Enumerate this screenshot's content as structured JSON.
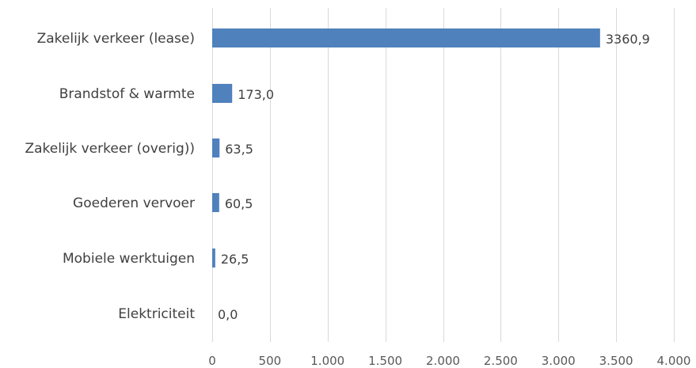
{
  "chart_data": {
    "type": "bar",
    "orientation": "horizontal",
    "categories": [
      "Zakelijk verkeer (lease)",
      "Brandstof & warmte",
      "Zakelijk verkeer (overig))",
      "Goederen vervoer",
      "Mobiele werktuigen",
      "Elektriciteit"
    ],
    "values": [
      3360.9,
      173.0,
      63.5,
      60.5,
      26.5,
      0.0
    ],
    "value_labels": [
      "3360,9",
      "173,0",
      "63,5",
      "60,5",
      "26,5",
      "0,0"
    ],
    "xlim": [
      0,
      4000
    ],
    "x_ticks": [
      0,
      500,
      1000,
      1500,
      2000,
      2500,
      3000,
      3500,
      4000
    ],
    "x_tick_labels": [
      "0",
      "500",
      "1.000",
      "1.500",
      "2.000",
      "2.500",
      "3.000",
      "3.500",
      "4.000"
    ],
    "grid": "vertical",
    "legend": "none",
    "bar_color": "#4f81bd"
  }
}
